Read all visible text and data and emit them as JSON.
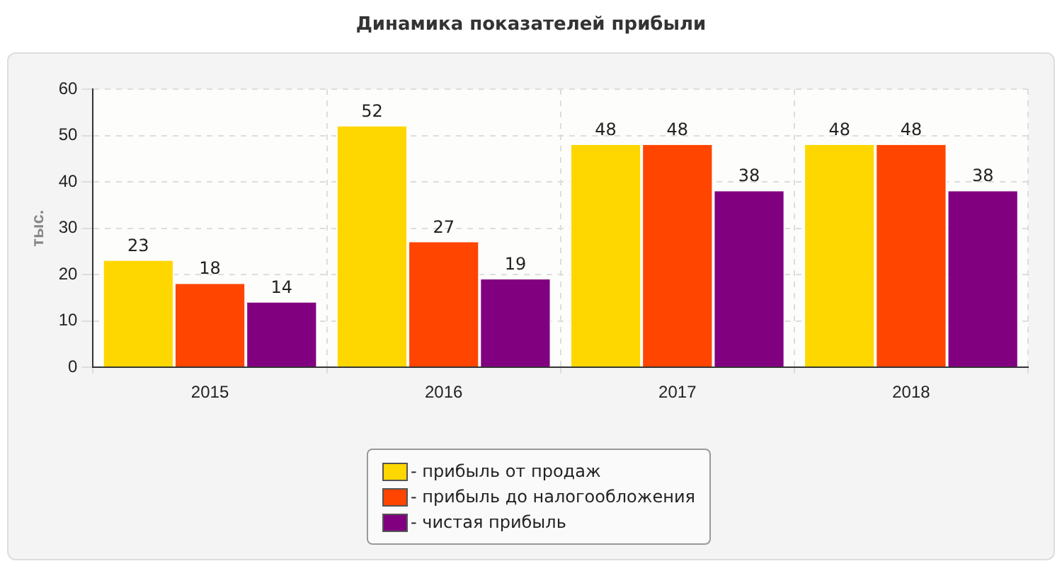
{
  "chart_data": {
    "type": "bar",
    "title": "Динамика показателей прибыли",
    "ylabel": "тыс.",
    "categories": [
      "2015",
      "2016",
      "2017",
      "2018"
    ],
    "series": [
      {
        "name": "- прибыль от продаж",
        "color": "#ffd700",
        "values": [
          23,
          52,
          48,
          48
        ]
      },
      {
        "name": "- прибыль до налогообложения",
        "color": "#ff4500",
        "values": [
          18,
          27,
          48,
          48
        ]
      },
      {
        "name": "- чистая прибыль",
        "color": "#800080",
        "values": [
          14,
          19,
          38,
          38
        ]
      }
    ],
    "ylim": [
      0,
      60
    ],
    "yticks": [
      0,
      10,
      20,
      30,
      40,
      50,
      60
    ],
    "grid": true,
    "legend": "bottom",
    "data_labels": true
  }
}
